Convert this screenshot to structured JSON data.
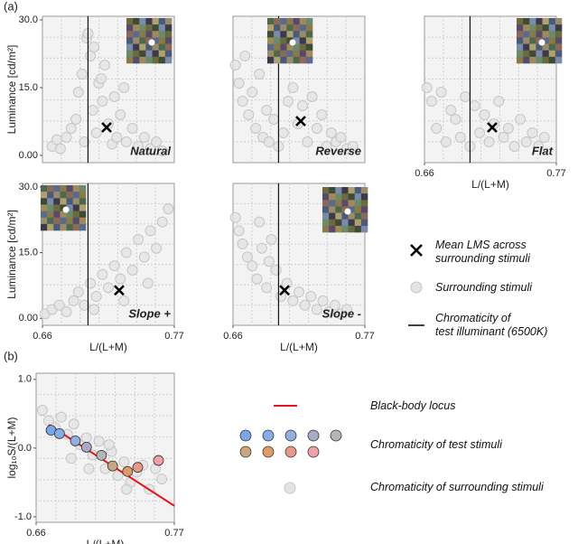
{
  "figure_labels": [
    "(a)",
    "(b)"
  ],
  "chart_data": [
    {
      "type": "scatter",
      "label": "Natural",
      "ylabel": "Luminance [cd/m²]",
      "xlim": [
        0.66,
        0.77
      ],
      "ylim": [
        -1.6,
        30.8
      ],
      "yticks": [
        {
          "value": 0,
          "label": "0.00"
        },
        {
          "value": 15,
          "label": "15.0"
        },
        {
          "value": 30,
          "label": "30.0"
        }
      ],
      "x": [
        0.668,
        0.672,
        0.675,
        0.68,
        0.684,
        0.688,
        0.69,
        0.693,
        0.695,
        0.697,
        0.7,
        0.702,
        0.705,
        0.707,
        0.71,
        0.712,
        0.715,
        0.718,
        0.72,
        0.722,
        0.725,
        0.728,
        0.73,
        0.735,
        0.74,
        0.745,
        0.75,
        0.755,
        0.76,
        0.698,
        0.703,
        0.709
      ],
      "y": [
        2,
        3.5,
        1.5,
        4,
        6,
        8,
        14,
        18,
        3,
        26,
        22,
        10,
        5,
        16,
        12,
        20,
        7,
        2.5,
        13,
        4,
        9,
        15,
        3,
        6,
        2,
        4,
        1.5,
        3,
        1,
        27,
        24,
        17
      ],
      "mean": {
        "x": 0.7135,
        "y": 6.2
      },
      "illuminant_x": 0.698
    },
    {
      "type": "scatter",
      "label": "Reverse",
      "xlim": [
        0.66,
        0.77
      ],
      "ylim": [
        -1.6,
        30.8
      ],
      "x": [
        0.662,
        0.665,
        0.668,
        0.67,
        0.673,
        0.676,
        0.679,
        0.682,
        0.685,
        0.688,
        0.69,
        0.694,
        0.698,
        0.702,
        0.706,
        0.71,
        0.714,
        0.718,
        0.722,
        0.726,
        0.73,
        0.734,
        0.738,
        0.742,
        0.746,
        0.75,
        0.755,
        0.76
      ],
      "y": [
        20,
        16,
        12,
        22,
        9,
        14,
        6,
        18,
        4,
        10,
        3,
        8,
        2,
        5,
        12,
        15,
        7,
        11,
        3,
        13,
        6,
        9,
        2,
        5,
        3,
        4,
        1.5,
        2
      ],
      "mean": {
        "x": 0.7165,
        "y": 7.6
      },
      "illuminant_x": 0.698
    },
    {
      "type": "scatter",
      "label": "Flat",
      "xlabel": "L/(L+M)",
      "xlim": [
        0.66,
        0.77
      ],
      "ylim": [
        -1.6,
        30.8
      ],
      "xticks": [
        0.66,
        0.77
      ],
      "x": [
        0.662,
        0.666,
        0.67,
        0.674,
        0.678,
        0.682,
        0.686,
        0.69,
        0.694,
        0.698,
        0.702,
        0.706,
        0.71,
        0.714,
        0.718,
        0.722,
        0.726,
        0.73,
        0.735,
        0.74,
        0.745,
        0.75,
        0.755,
        0.76
      ],
      "y": [
        15,
        12,
        6,
        14,
        3,
        10,
        8,
        4,
        13,
        2,
        11,
        5,
        9,
        3,
        7,
        12,
        4,
        6,
        2,
        8,
        3,
        5,
        2,
        4
      ],
      "mean": {
        "x": 0.7165,
        "y": 6.2
      },
      "illuminant_x": 0.698
    },
    {
      "type": "scatter",
      "label": "Slope +",
      "ylabel": "Luminance [cd/m²]",
      "xlabel": "L/(L+M)",
      "xlim": [
        0.66,
        0.77
      ],
      "ylim": [
        -1.6,
        30.8
      ],
      "xticks": [
        0.66,
        0.77
      ],
      "yticks": [
        {
          "value": 0,
          "label": "0.00"
        },
        {
          "value": 15,
          "label": "15.0"
        },
        {
          "value": 30,
          "label": "30.0"
        }
      ],
      "x": [
        0.662,
        0.668,
        0.674,
        0.68,
        0.686,
        0.69,
        0.695,
        0.7,
        0.705,
        0.71,
        0.715,
        0.72,
        0.725,
        0.73,
        0.735,
        0.74,
        0.745,
        0.75,
        0.755,
        0.76,
        0.765,
        0.703,
        0.728,
        0.748
      ],
      "y": [
        1,
        2,
        3,
        1.5,
        4,
        6,
        3,
        8,
        5,
        10,
        7,
        12,
        9,
        15,
        11,
        18,
        14,
        20,
        16,
        22,
        25,
        2,
        4,
        8
      ],
      "mean": {
        "x": 0.724,
        "y": 6.4
      },
      "illuminant_x": 0.698
    },
    {
      "type": "scatter",
      "label": "Slope -",
      "xlabel": "L/(L+M)",
      "xlim": [
        0.66,
        0.77
      ],
      "ylim": [
        -1.6,
        30.8
      ],
      "xticks": [
        0.66,
        0.77
      ],
      "x": [
        0.662,
        0.665,
        0.668,
        0.672,
        0.676,
        0.68,
        0.684,
        0.688,
        0.692,
        0.696,
        0.7,
        0.705,
        0.71,
        0.715,
        0.72,
        0.725,
        0.73,
        0.735,
        0.74,
        0.745,
        0.75,
        0.755,
        0.682,
        0.69
      ],
      "y": [
        23,
        20,
        17,
        14,
        12,
        9,
        16,
        7,
        18,
        11,
        5,
        8,
        4,
        6,
        3,
        5,
        2,
        4,
        1.5,
        3,
        1,
        2,
        22,
        13
      ],
      "mean": {
        "x": 0.703,
        "y": 6.4
      },
      "illuminant_x": 0.698
    },
    {
      "type": "chromaticity",
      "ylabel": "log₁₀S/(L+M)",
      "xlabel": "L/(L+M)",
      "xlim": [
        0.66,
        0.77
      ],
      "ylim": [
        -1.08,
        1.09
      ],
      "xticks": [
        0.66,
        0.77
      ],
      "yticks": [
        {
          "value": 1,
          "label": "1.0"
        },
        {
          "value": 0,
          "label": "0.0"
        },
        {
          "value": -1,
          "label": "-1.0"
        }
      ],
      "x": [
        0.665,
        0.67,
        0.675,
        0.68,
        0.685,
        0.69,
        0.695,
        0.7,
        0.705,
        0.71,
        0.715,
        0.72,
        0.725,
        0.73,
        0.735,
        0.74,
        0.745,
        0.75,
        0.755,
        0.76,
        0.688,
        0.702,
        0.718,
        0.732
      ],
      "y": [
        0.55,
        0.4,
        0.3,
        0.45,
        0.2,
        0.35,
        0.05,
        0.15,
        -0.1,
        0.1,
        -0.3,
        -0.05,
        -0.4,
        -0.2,
        -0.5,
        -0.35,
        -0.25,
        -0.6,
        -0.3,
        -0.45,
        -0.15,
        -0.3,
        0.05,
        -0.6
      ],
      "locus": {
        "x": [
          0.67,
          0.77
        ],
        "y": [
          0.34,
          -0.84
        ],
        "color": "#e8141c"
      },
      "test": {
        "x": [
          0.6719,
          0.6786,
          0.6912,
          0.7001,
          0.712,
          0.7209,
          0.7328,
          0.7409,
          0.7574
        ],
        "y": [
          0.26,
          0.21,
          0.105,
          0.013,
          -0.105,
          -0.26,
          -0.34,
          -0.28,
          -0.18
        ],
        "colors": [
          "#7aa6e8",
          "#86aee6",
          "#8fb0e0",
          "#a9a9c8",
          "#b5b5b5",
          "#c8a882",
          "#e09a6a",
          "#e8988a",
          "#f0a0a8"
        ]
      }
    }
  ],
  "legend_a": {
    "items": [
      "Mean LMS across\nsurrounding stimuli",
      "Surrounding stimuli",
      "Chromaticity of\ntest illuminant (6500K)"
    ]
  },
  "legend_b": {
    "items": [
      "Black-body locus",
      "Chromaticity of test stimuli",
      "Chromaticity of surrounding stimuli"
    ]
  }
}
